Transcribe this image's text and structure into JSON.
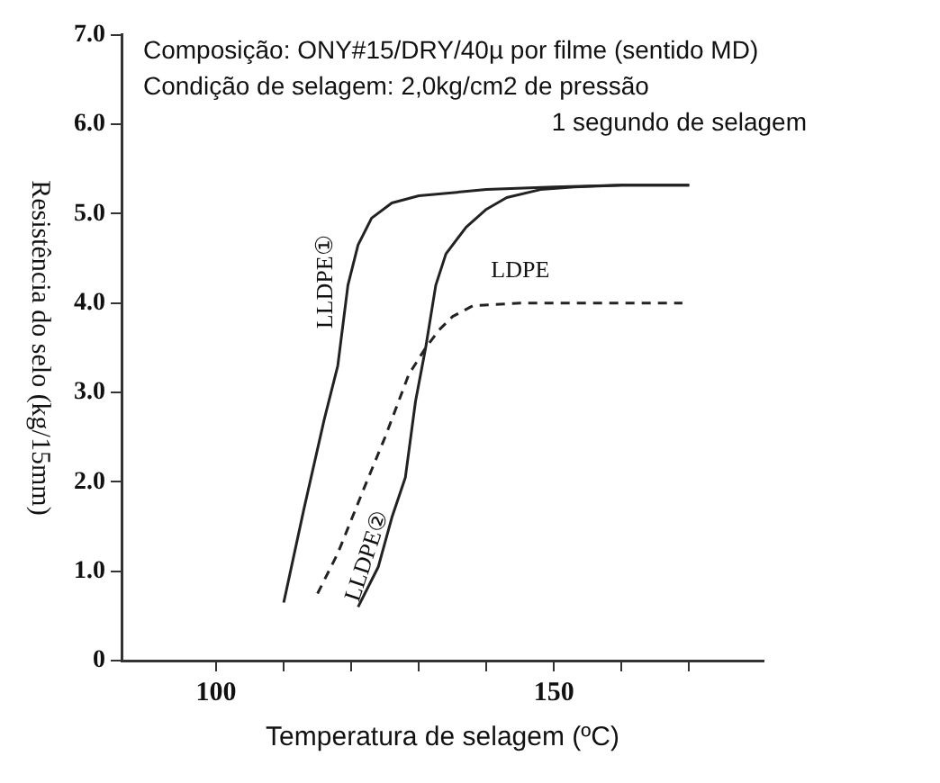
{
  "chart_data": {
    "type": "line",
    "xlabel": "Temperatura de selagem (ºC)",
    "ylabel": "Resistência do selo (kg/15mm)",
    "annotations": [
      "Composição: ONY#15/DRY/40µ por filme (sentido MD)",
      "Condição de selagem: 2,0kg/cm2 de pressão",
      "1 segundo de selagem"
    ],
    "xlim": [
      86,
      181
    ],
    "xticks": [
      100,
      {
        "value": 110,
        "label": null
      },
      {
        "value": 120,
        "label": null
      },
      {
        "value": 130,
        "label": null
      },
      {
        "value": 140,
        "label": null
      },
      150,
      {
        "value": 160,
        "label": null
      },
      {
        "value": 170,
        "label": null
      }
    ],
    "ylim": [
      0,
      7
    ],
    "yticks": [
      0,
      {
        "value": 1,
        "label": "1.0"
      },
      {
        "value": 2,
        "label": "2.0"
      },
      {
        "value": 3,
        "label": "3.0"
      },
      {
        "value": 4,
        "label": "4.0"
      },
      {
        "value": 5,
        "label": "5.0"
      },
      {
        "value": 6,
        "label": "6.0"
      },
      {
        "value": 7,
        "label": "7.0"
      }
    ],
    "grid": false,
    "legend": false,
    "marker": "none",
    "series": [
      {
        "name": "LLDPE①",
        "color": "#222222",
        "line_style": "solid",
        "x": [
          110,
          113,
          116,
          118,
          119.5,
          121,
          123,
          126,
          130,
          140,
          150,
          160,
          170
        ],
        "values": [
          0.65,
          1.7,
          2.7,
          3.3,
          4.2,
          4.65,
          4.95,
          5.12,
          5.2,
          5.27,
          5.3,
          5.32,
          5.32
        ]
      },
      {
        "name": "LLDPE②",
        "color": "#222222",
        "line_style": "solid",
        "x": [
          121,
          124,
          126,
          128,
          129.5,
          131,
          132.5,
          134,
          137,
          140,
          143,
          148,
          153,
          160,
          170
        ],
        "values": [
          0.6,
          1.05,
          1.6,
          2.05,
          2.9,
          3.5,
          4.2,
          4.55,
          4.85,
          5.05,
          5.18,
          5.27,
          5.3,
          5.32,
          5.32
        ]
      },
      {
        "name": "LDPE",
        "color": "#222222",
        "line_style": "dashed",
        "x": [
          115,
          118,
          122,
          125,
          128.5,
          131,
          133,
          135,
          138,
          145,
          160,
          169
        ],
        "values": [
          0.75,
          1.2,
          1.95,
          2.5,
          3.2,
          3.5,
          3.7,
          3.85,
          3.97,
          4.0,
          4.0,
          4.0
        ]
      }
    ]
  }
}
